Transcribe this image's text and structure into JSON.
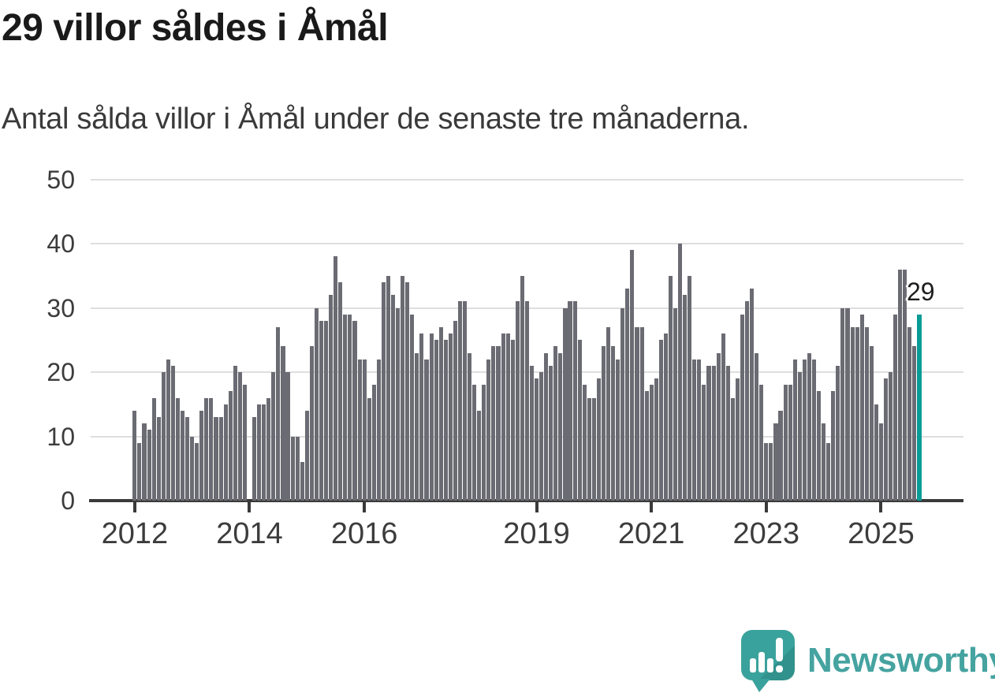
{
  "header": {
    "title": "29 villor såldes i Åmål",
    "subtitle": "Antal sålda villor i Åmål under de senaste tre månaderna."
  },
  "chart_data": {
    "type": "bar",
    "title": "29 villor såldes i Åmål",
    "subtitle": "Antal sålda villor i Åmål under de senaste tre månaderna.",
    "ylabel": "",
    "xlabel": "",
    "ylim": [
      0,
      50
    ],
    "yticks": [
      0,
      10,
      20,
      30,
      40,
      50
    ],
    "grid": true,
    "x_unit": "month",
    "x_start": "2012-01",
    "x_end": "2025-09",
    "missing_months": [
      "2014-01"
    ],
    "monthly_values": [
      {
        "year": 2012,
        "values": [
          14,
          9,
          12,
          11,
          16,
          13,
          20,
          22,
          21,
          16,
          14,
          13
        ]
      },
      {
        "year": 2013,
        "values": [
          10,
          9,
          14,
          16,
          16,
          13,
          13,
          15,
          17,
          21,
          20,
          18
        ]
      },
      {
        "year": 2014,
        "values": [
          null,
          13,
          15,
          15,
          16,
          20,
          27,
          24,
          20,
          10,
          10,
          6
        ]
      },
      {
        "year": 2015,
        "values": [
          14,
          24,
          30,
          28,
          28,
          32,
          38,
          34,
          29,
          29,
          28,
          22
        ]
      },
      {
        "year": 2016,
        "values": [
          22,
          16,
          18,
          22,
          34,
          35,
          32,
          30,
          35,
          34,
          29,
          23
        ]
      },
      {
        "year": 2017,
        "values": [
          26,
          22,
          26,
          25,
          27,
          25,
          26,
          28,
          31,
          31,
          23,
          18
        ]
      },
      {
        "year": 2018,
        "values": [
          14,
          18,
          22,
          24,
          24,
          26,
          26,
          25,
          31,
          35,
          31,
          21
        ]
      },
      {
        "year": 2019,
        "values": [
          19,
          20,
          23,
          21,
          24,
          23,
          30,
          31,
          31,
          25,
          18,
          16
        ]
      },
      {
        "year": 2020,
        "values": [
          16,
          19,
          24,
          27,
          24,
          22,
          30,
          33,
          39,
          27,
          27,
          17
        ]
      },
      {
        "year": 2021,
        "values": [
          18,
          19,
          25,
          26,
          35,
          30,
          40,
          32,
          35,
          22,
          22,
          18
        ]
      },
      {
        "year": 2022,
        "values": [
          21,
          21,
          23,
          26,
          21,
          16,
          19,
          29,
          31,
          33,
          23,
          18
        ]
      },
      {
        "year": 2023,
        "values": [
          9,
          9,
          12,
          14,
          18,
          18,
          22,
          20,
          22,
          23,
          22,
          17
        ]
      },
      {
        "year": 2024,
        "values": [
          12,
          9,
          17,
          21,
          30,
          30,
          27,
          27,
          29,
          27,
          24,
          15
        ]
      },
      {
        "year": 2025,
        "values": [
          12,
          19,
          20,
          29,
          36,
          36,
          27,
          24,
          29
        ]
      }
    ],
    "xticks": [
      {
        "label": "2012",
        "month_index": 0
      },
      {
        "label": "2014",
        "month_index": 24
      },
      {
        "label": "2016",
        "month_index": 48
      },
      {
        "label": "2019",
        "month_index": 84
      },
      {
        "label": "2021",
        "month_index": 108
      },
      {
        "label": "2023",
        "month_index": 132
      },
      {
        "label": "2025",
        "month_index": 156
      }
    ],
    "highlight": {
      "position": "last",
      "value": 29,
      "label": "29",
      "color": "#089c96"
    },
    "bar_color": "#6b6b73",
    "gridline_color": "#dedede",
    "axis_color": "#3a3a3a",
    "legend": null
  },
  "annotation": {
    "last_value_label": "29"
  },
  "logo": {
    "text": "Newsworthy",
    "text_color": "#45a3a0",
    "bubble_color": "#3aa29c"
  }
}
